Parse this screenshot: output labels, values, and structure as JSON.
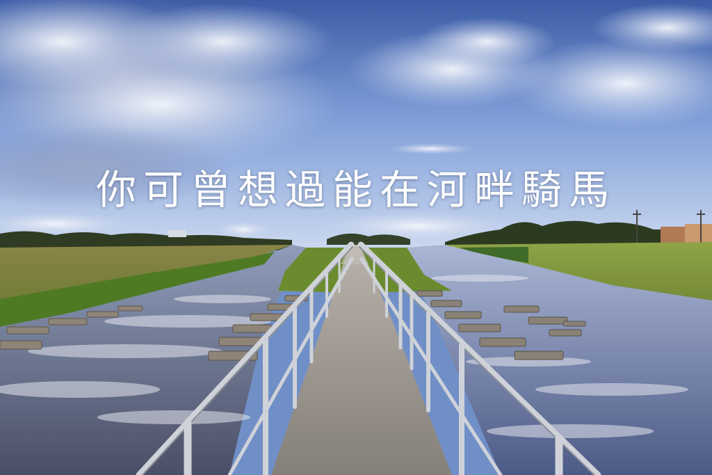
{
  "headline": "你可曾想過能在河畔騎馬",
  "colors": {
    "sky_top": "#3d5fa8",
    "sky_mid": "#7f9fd8",
    "sky_horizon": "#c9d8f0",
    "cloud": "#e8ecf6",
    "grass": "#7d9a3c",
    "field": "#8c8a4a",
    "water": "#5e6a8a",
    "path": "#9a9590",
    "railing": "#c9ccd2",
    "headline": "#ffffff"
  },
  "scene_elements": [
    "sky",
    "clouds",
    "tree-line",
    "left-river",
    "right-river",
    "grass-banks",
    "stepping-stones",
    "walkway",
    "railings",
    "utility-poles",
    "houses"
  ]
}
